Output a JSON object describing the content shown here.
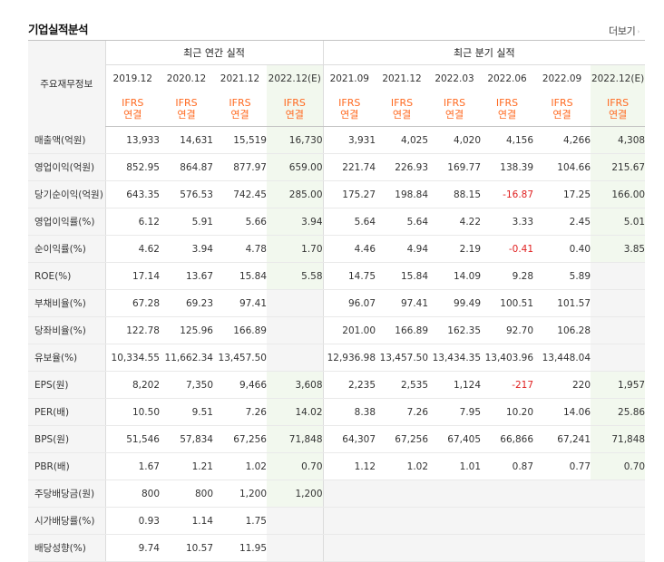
{
  "header": {
    "title": "기업실적분석",
    "more_label": "더보기",
    "more_arrow": "›"
  },
  "table": {
    "main_label": "주요재무정보",
    "group_annual": "최근 연간 실적",
    "group_quarterly": "최근 분기 실적",
    "annual_periods": [
      "2019.12",
      "2020.12",
      "2021.12",
      "2022.12(E)"
    ],
    "quarter_periods": [
      "2021.09",
      "2021.12",
      "2022.03",
      "2022.06",
      "2022.09",
      "2022.12(E)"
    ],
    "ifrs_line1": "IFRS",
    "ifrs_line2": "연결",
    "rows": [
      {
        "label": "매출액(억원)",
        "values": [
          "13,933",
          "14,631",
          "15,519",
          "16,730",
          "3,931",
          "4,025",
          "4,020",
          "4,156",
          "4,266",
          "4,308"
        ]
      },
      {
        "label": "영업이익(억원)",
        "values": [
          "852.95",
          "864.87",
          "877.97",
          "659.00",
          "221.74",
          "226.93",
          "169.77",
          "138.39",
          "104.66",
          "215.67"
        ]
      },
      {
        "label": "당기순이익(억원)",
        "values": [
          "643.35",
          "576.53",
          "742.45",
          "285.00",
          "175.27",
          "198.84",
          "88.15",
          "-16.87",
          "17.25",
          "166.00"
        ]
      },
      {
        "label": "영업이익률(%)",
        "values": [
          "6.12",
          "5.91",
          "5.66",
          "3.94",
          "5.64",
          "5.64",
          "4.22",
          "3.33",
          "2.45",
          "5.01"
        ]
      },
      {
        "label": "순이익률(%)",
        "values": [
          "4.62",
          "3.94",
          "4.78",
          "1.70",
          "4.46",
          "4.94",
          "2.19",
          "-0.41",
          "0.40",
          "3.85"
        ]
      },
      {
        "label": "ROE(%)",
        "values": [
          "17.14",
          "13.67",
          "15.84",
          "5.58",
          "14.75",
          "15.84",
          "14.09",
          "9.28",
          "5.89",
          ""
        ]
      },
      {
        "label": "부채비율(%)",
        "values": [
          "67.28",
          "69.23",
          "97.41",
          "",
          "96.07",
          "97.41",
          "99.49",
          "100.51",
          "101.57",
          ""
        ]
      },
      {
        "label": "당좌비율(%)",
        "values": [
          "122.78",
          "125.96",
          "166.89",
          "",
          "201.00",
          "166.89",
          "162.35",
          "92.70",
          "106.28",
          ""
        ]
      },
      {
        "label": "유보율(%)",
        "values": [
          "10,334.55",
          "11,662.34",
          "13,457.50",
          "",
          "12,936.98",
          "13,457.50",
          "13,434.35",
          "13,403.96",
          "13,448.04",
          ""
        ]
      },
      {
        "label": "EPS(원)",
        "values": [
          "8,202",
          "7,350",
          "9,466",
          "3,608",
          "2,235",
          "2,535",
          "1,124",
          "-217",
          "220",
          "1,957"
        ]
      },
      {
        "label": "PER(배)",
        "values": [
          "10.50",
          "9.51",
          "7.26",
          "14.02",
          "8.38",
          "7.26",
          "7.95",
          "10.20",
          "14.06",
          "25.86"
        ]
      },
      {
        "label": "BPS(원)",
        "values": [
          "51,546",
          "57,834",
          "67,256",
          "71,848",
          "64,307",
          "67,256",
          "67,405",
          "66,866",
          "67,241",
          "71,848"
        ]
      },
      {
        "label": "PBR(배)",
        "values": [
          "1.67",
          "1.21",
          "1.02",
          "0.70",
          "1.12",
          "1.02",
          "1.01",
          "0.87",
          "0.77",
          "0.70"
        ]
      },
      {
        "label": "주당배당금(원)",
        "values": [
          "800",
          "800",
          "1,200",
          "1,200",
          "",
          "",
          "",
          "",
          "",
          ""
        ]
      },
      {
        "label": "시가배당률(%)",
        "values": [
          "0.93",
          "1.14",
          "1.75",
          "",
          "",
          "",
          "",
          "",
          "",
          ""
        ]
      },
      {
        "label": "배당성향(%)",
        "values": [
          "9.74",
          "10.57",
          "11.95",
          "",
          "",
          "",
          "",
          "",
          "",
          ""
        ]
      }
    ]
  },
  "colors": {
    "ifrs_text": "#ff6a21",
    "negative_text": "#e02020",
    "estimate_bg": "#f2f8ee",
    "label_bg": "#f5f5f5"
  }
}
